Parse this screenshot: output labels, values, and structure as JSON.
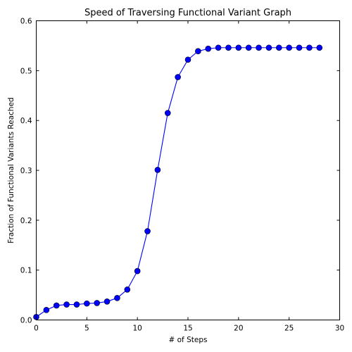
{
  "chart_data": {
    "type": "line",
    "title": "Speed of Traversing Functional Variant Graph",
    "xlabel": "# of Steps",
    "ylabel": "Fraction of Functional Variants Reached",
    "xlim": [
      0,
      30
    ],
    "ylim": [
      0,
      0.6
    ],
    "xticks": [
      0,
      5,
      10,
      15,
      20,
      25,
      30
    ],
    "yticks": [
      0.0,
      0.1,
      0.2,
      0.3,
      0.4,
      0.5,
      0.6
    ],
    "xtick_labels": [
      "0",
      "5",
      "10",
      "15",
      "20",
      "25",
      "30"
    ],
    "ytick_labels": [
      "0.0",
      "0.1",
      "0.2",
      "0.3",
      "0.4",
      "0.5",
      "0.6"
    ],
    "grid": false,
    "legend": "none",
    "series": [
      {
        "color": "#0000ff",
        "marker": "circle",
        "x": [
          0,
          1,
          2,
          3,
          4,
          5,
          6,
          7,
          8,
          9,
          10,
          11,
          12,
          13,
          14,
          15,
          16,
          17,
          18,
          19,
          20,
          21,
          22,
          23,
          24,
          25,
          26,
          27,
          28
        ],
        "values": [
          0.006,
          0.02,
          0.029,
          0.031,
          0.031,
          0.033,
          0.034,
          0.037,
          0.044,
          0.061,
          0.098,
          0.178,
          0.301,
          0.415,
          0.487,
          0.522,
          0.539,
          0.544,
          0.546,
          0.546,
          0.546,
          0.546,
          0.546,
          0.546,
          0.546,
          0.546,
          0.546,
          0.546,
          0.546
        ]
      }
    ]
  }
}
